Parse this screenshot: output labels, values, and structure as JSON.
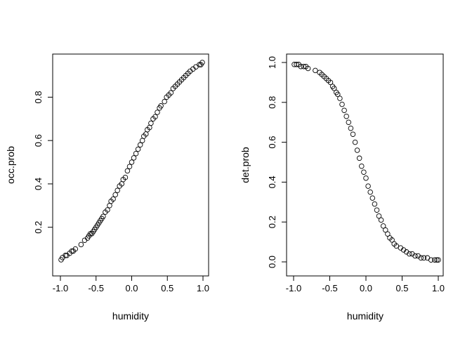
{
  "chart_data": [
    {
      "type": "scatter",
      "xlabel": "humidity",
      "ylabel": "occ.prob",
      "xlim": [
        -1.0,
        1.0
      ],
      "ylim": [
        0.05,
        0.96
      ],
      "xticks": [
        -1.0,
        -0.5,
        0.0,
        0.5,
        1.0
      ],
      "xtick_labels": [
        "-1.0",
        "-0.5",
        "0.0",
        "0.5",
        "1.0"
      ],
      "yticks": [
        0.2,
        0.4,
        0.6,
        0.8
      ],
      "ytick_labels": [
        "0.2",
        "0.4",
        "0.6",
        "0.8"
      ],
      "marker": "open-circle",
      "grid": false,
      "points": [
        [
          -0.99,
          0.05
        ],
        [
          -0.97,
          0.06
        ],
        [
          -0.93,
          0.07
        ],
        [
          -0.91,
          0.07
        ],
        [
          -0.87,
          0.08
        ],
        [
          -0.84,
          0.09
        ],
        [
          -0.82,
          0.09
        ],
        [
          -0.79,
          0.1
        ],
        [
          -0.71,
          0.12
        ],
        [
          -0.66,
          0.14
        ],
        [
          -0.62,
          0.15
        ],
        [
          -0.6,
          0.16
        ],
        [
          -0.58,
          0.17
        ],
        [
          -0.56,
          0.17
        ],
        [
          -0.54,
          0.18
        ],
        [
          -0.52,
          0.19
        ],
        [
          -0.5,
          0.2
        ],
        [
          -0.48,
          0.21
        ],
        [
          -0.46,
          0.22
        ],
        [
          -0.44,
          0.23
        ],
        [
          -0.42,
          0.24
        ],
        [
          -0.4,
          0.25
        ],
        [
          -0.37,
          0.27
        ],
        [
          -0.34,
          0.28
        ],
        [
          -0.31,
          0.3
        ],
        [
          -0.29,
          0.32
        ],
        [
          -0.26,
          0.33
        ],
        [
          -0.23,
          0.35
        ],
        [
          -0.2,
          0.37
        ],
        [
          -0.17,
          0.39
        ],
        [
          -0.14,
          0.4
        ],
        [
          -0.12,
          0.42
        ],
        [
          -0.09,
          0.43
        ],
        [
          -0.06,
          0.46
        ],
        [
          -0.03,
          0.48
        ],
        [
          0.0,
          0.5
        ],
        [
          0.03,
          0.52
        ],
        [
          0.06,
          0.54
        ],
        [
          0.09,
          0.56
        ],
        [
          0.12,
          0.58
        ],
        [
          0.15,
          0.6
        ],
        [
          0.17,
          0.62
        ],
        [
          0.2,
          0.63
        ],
        [
          0.22,
          0.65
        ],
        [
          0.25,
          0.66
        ],
        [
          0.27,
          0.68
        ],
        [
          0.3,
          0.7
        ],
        [
          0.33,
          0.71
        ],
        [
          0.36,
          0.73
        ],
        [
          0.39,
          0.75
        ],
        [
          0.41,
          0.76
        ],
        [
          0.46,
          0.78
        ],
        [
          0.49,
          0.8
        ],
        [
          0.52,
          0.81
        ],
        [
          0.55,
          0.82
        ],
        [
          0.58,
          0.84
        ],
        [
          0.61,
          0.85
        ],
        [
          0.64,
          0.86
        ],
        [
          0.67,
          0.87
        ],
        [
          0.7,
          0.88
        ],
        [
          0.73,
          0.89
        ],
        [
          0.76,
          0.9
        ],
        [
          0.79,
          0.91
        ],
        [
          0.82,
          0.92
        ],
        [
          0.86,
          0.93
        ],
        [
          0.9,
          0.94
        ],
        [
          0.95,
          0.95
        ],
        [
          0.97,
          0.95
        ],
        [
          0.99,
          0.96
        ]
      ]
    },
    {
      "type": "scatter",
      "xlabel": "humidity",
      "ylabel": "det.prob",
      "xlim": [
        -1.0,
        1.0
      ],
      "ylim": [
        0.0,
        1.0
      ],
      "xticks": [
        -1.0,
        -0.5,
        0.0,
        0.5,
        1.0
      ],
      "xtick_labels": [
        "-1.0",
        "-0.5",
        "0.0",
        "0.5",
        "1.0"
      ],
      "yticks": [
        0.0,
        0.2,
        0.4,
        0.6,
        0.8,
        1.0
      ],
      "ytick_labels": [
        "0.0",
        "0.2",
        "0.4",
        "0.6",
        "0.8",
        "1.0"
      ],
      "marker": "open-circle",
      "grid": false,
      "points": [
        [
          -0.99,
          0.99
        ],
        [
          -0.96,
          0.99
        ],
        [
          -0.93,
          0.99
        ],
        [
          -0.9,
          0.98
        ],
        [
          -0.86,
          0.98
        ],
        [
          -0.83,
          0.98
        ],
        [
          -0.8,
          0.97
        ],
        [
          -0.7,
          0.96
        ],
        [
          -0.64,
          0.95
        ],
        [
          -0.61,
          0.94
        ],
        [
          -0.58,
          0.93
        ],
        [
          -0.55,
          0.92
        ],
        [
          -0.52,
          0.91
        ],
        [
          -0.49,
          0.9
        ],
        [
          -0.46,
          0.88
        ],
        [
          -0.44,
          0.87
        ],
        [
          -0.41,
          0.85
        ],
        [
          -0.39,
          0.84
        ],
        [
          -0.36,
          0.82
        ],
        [
          -0.33,
          0.79
        ],
        [
          -0.3,
          0.76
        ],
        [
          -0.27,
          0.73
        ],
        [
          -0.24,
          0.7
        ],
        [
          -0.21,
          0.67
        ],
        [
          -0.18,
          0.64
        ],
        [
          -0.15,
          0.6
        ],
        [
          -0.12,
          0.56
        ],
        [
          -0.09,
          0.52
        ],
        [
          -0.06,
          0.48
        ],
        [
          -0.03,
          0.45
        ],
        [
          0.0,
          0.42
        ],
        [
          0.03,
          0.38
        ],
        [
          0.06,
          0.35
        ],
        [
          0.09,
          0.32
        ],
        [
          0.12,
          0.29
        ],
        [
          0.15,
          0.26
        ],
        [
          0.18,
          0.23
        ],
        [
          0.21,
          0.21
        ],
        [
          0.24,
          0.18
        ],
        [
          0.27,
          0.16
        ],
        [
          0.3,
          0.14
        ],
        [
          0.33,
          0.12
        ],
        [
          0.36,
          0.11
        ],
        [
          0.39,
          0.09
        ],
        [
          0.42,
          0.08
        ],
        [
          0.48,
          0.07
        ],
        [
          0.52,
          0.06
        ],
        [
          0.56,
          0.05
        ],
        [
          0.6,
          0.04
        ],
        [
          0.64,
          0.04
        ],
        [
          0.68,
          0.03
        ],
        [
          0.72,
          0.03
        ],
        [
          0.76,
          0.02
        ],
        [
          0.8,
          0.02
        ],
        [
          0.85,
          0.02
        ],
        [
          0.9,
          0.01
        ],
        [
          0.95,
          0.01
        ],
        [
          0.98,
          0.01
        ],
        [
          1.0,
          0.01
        ]
      ]
    }
  ]
}
